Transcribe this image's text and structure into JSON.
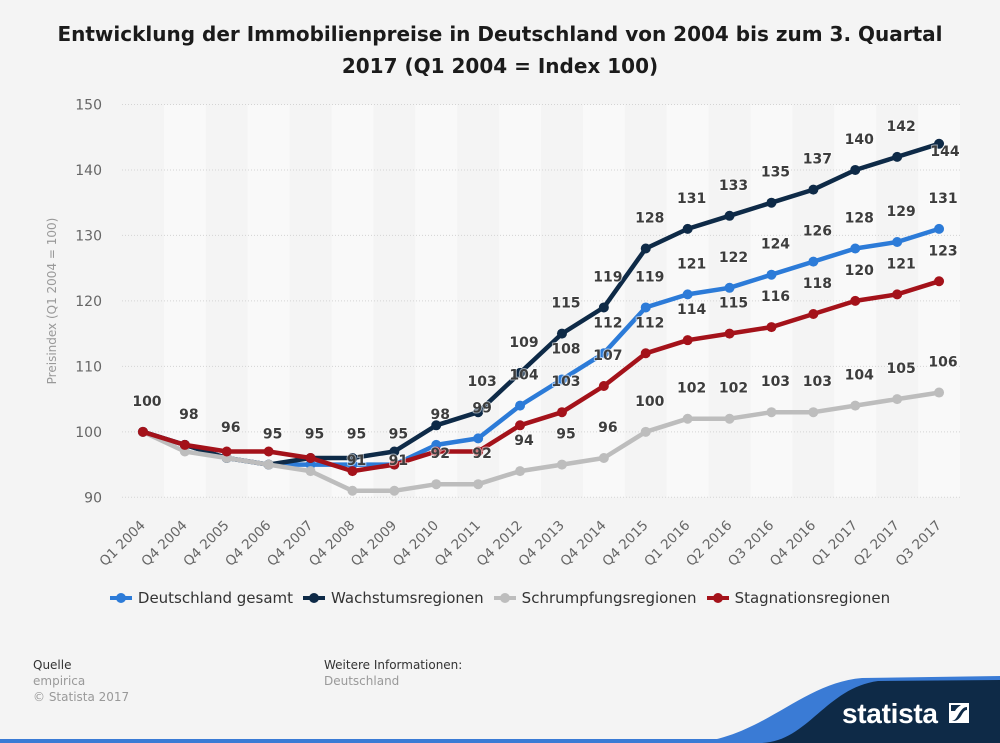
{
  "title": {
    "line1": "Entwicklung der Immobilienpreise in Deutschland von 2004 bis zum 3. Quartal",
    "line2": "2017 (Q1 2004 = Index 100)"
  },
  "chart_data": {
    "type": "line",
    "title": "Entwicklung der Immobilienpreise in Deutschland von 2004 bis zum 3. Quartal 2017 (Q1 2004 = Index 100)",
    "xlabel": "",
    "ylabel": "Preisindex (Q1 2004 = 100)",
    "ylim": [
      90,
      150
    ],
    "yticks": [
      90,
      100,
      110,
      120,
      130,
      140,
      150
    ],
    "grid": true,
    "legend_position": "bottom",
    "colors": {
      "background": "#f4f4f4",
      "band": "#f9f9f9",
      "grid": "#d4d4d4",
      "tick_text": "#666666",
      "label_text": "#3d3d3d"
    },
    "categories": [
      "Q1 2004",
      "Q4 2004",
      "Q4 2005",
      "Q4 2006",
      "Q4 2007",
      "Q4 2008",
      "Q4 2009",
      "Q4 2010",
      "Q4 2011",
      "Q4 2012",
      "Q4 2013",
      "Q4 2014",
      "Q4 2015",
      "Q1 2016",
      "Q2 2016",
      "Q3 2016",
      "Q4 2016",
      "Q1 2017",
      "Q2 2017",
      "Q3 2017"
    ],
    "series": [
      {
        "name": "Deutschland gesamt",
        "color": "#2c7bd8",
        "values": [
          100,
          98,
          96,
          95,
          95,
          95,
          95,
          98,
          99,
          104,
          108,
          112,
          119,
          121,
          122,
          124,
          126,
          128,
          129,
          131
        ],
        "data_labels": [
          "100",
          "98",
          "96",
          "95",
          "95",
          "95",
          "95",
          "98",
          "99",
          "104",
          "108",
          "112",
          "119",
          "121",
          "122",
          "124",
          "126",
          "128",
          "129",
          "131"
        ]
      },
      {
        "name": "Wachstumsregionen",
        "color": "#0e2a47",
        "values": [
          100,
          98,
          96,
          95,
          96,
          96,
          97,
          101,
          103,
          109,
          115,
          119,
          128,
          131,
          133,
          135,
          137,
          140,
          142,
          144
        ],
        "data_labels": [
          null,
          null,
          null,
          null,
          null,
          null,
          null,
          null,
          "103",
          "109",
          "115",
          "119",
          "128",
          "131",
          "133",
          "135",
          "137",
          "140",
          "142",
          "144"
        ]
      },
      {
        "name": "Schrumpfungsregionen",
        "color": "#bdbdbd",
        "values": [
          100,
          97,
          96,
          95,
          94,
          91,
          91,
          92,
          92,
          94,
          95,
          96,
          100,
          102,
          102,
          103,
          103,
          104,
          105,
          106
        ],
        "data_labels": [
          null,
          null,
          null,
          null,
          null,
          "91",
          "91",
          "92",
          "92",
          "94",
          "95",
          "96",
          "100",
          "102",
          "102",
          "103",
          "103",
          "104",
          "105",
          "106"
        ]
      },
      {
        "name": "Stagnationsregionen",
        "color": "#a4121a",
        "values": [
          100,
          98,
          97,
          97,
          96,
          94,
          95,
          97,
          97,
          101,
          103,
          107,
          112,
          114,
          115,
          116,
          118,
          120,
          121,
          123
        ],
        "data_labels": [
          null,
          null,
          null,
          null,
          null,
          null,
          null,
          null,
          null,
          null,
          "103",
          "107",
          "112",
          "114",
          "115",
          "116",
          "118",
          "120",
          "121",
          "123"
        ]
      }
    ]
  },
  "footer": {
    "source_heading": "Quelle",
    "source": "empirica",
    "copyright": "© Statista 2017",
    "info_heading": "Weitere Informationen:",
    "info": "Deutschland",
    "brand": "statista",
    "brand_colors": {
      "navy": "#0e2a47",
      "blue": "#3a7bd5"
    }
  }
}
